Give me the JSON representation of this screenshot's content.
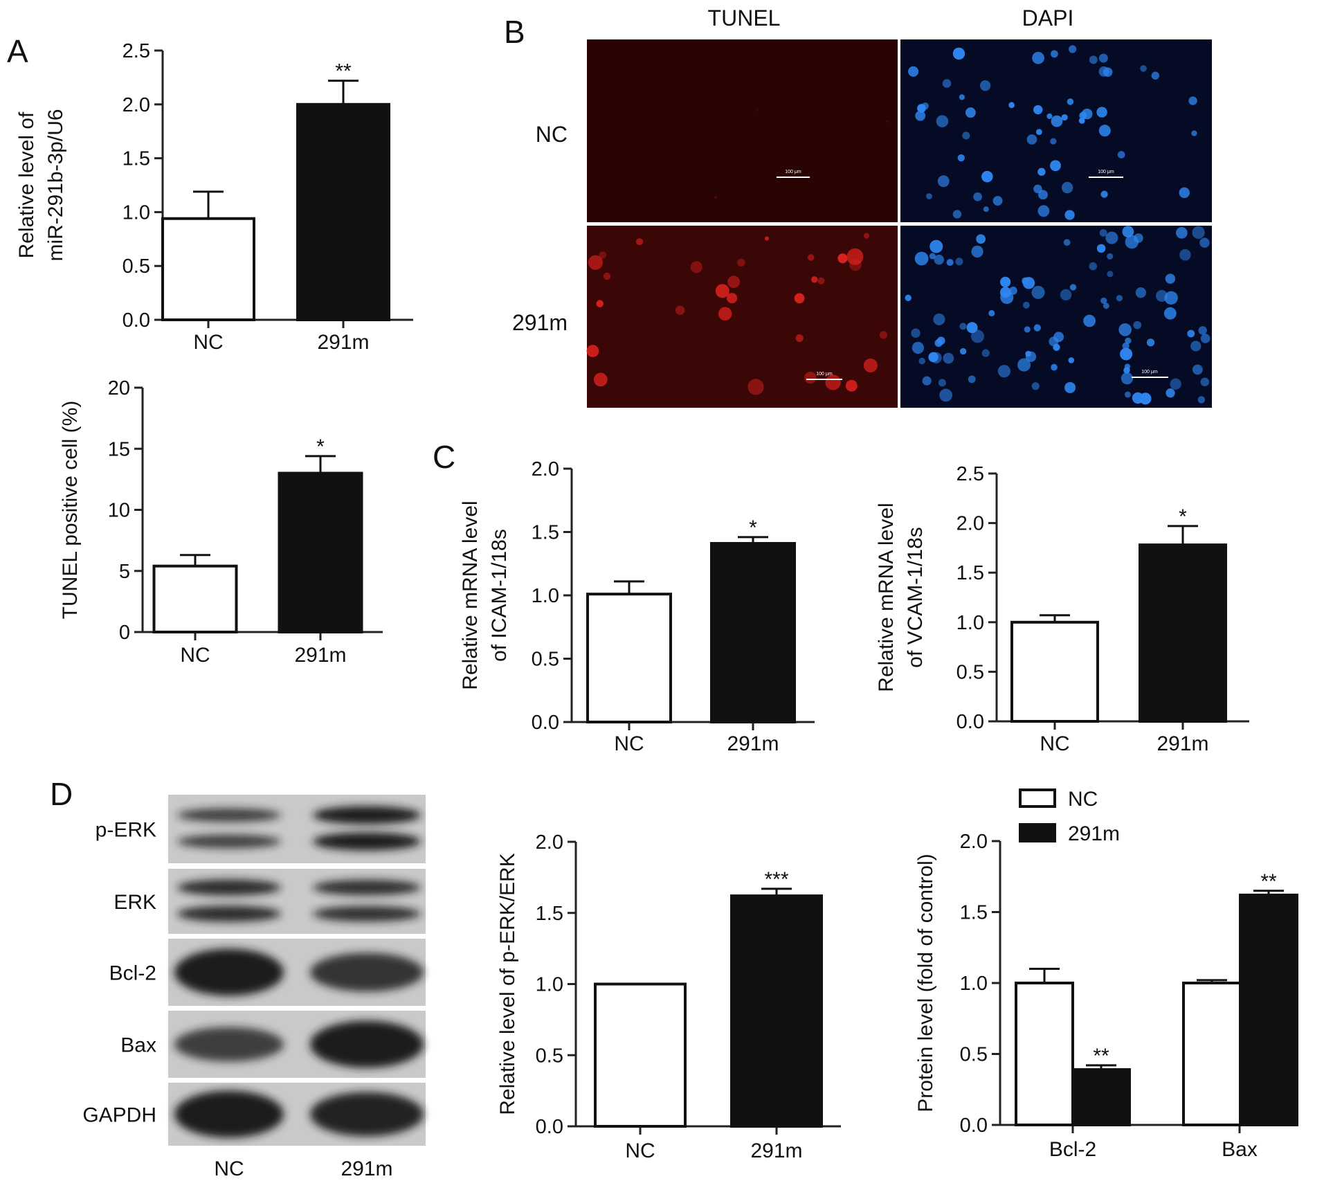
{
  "panels": {
    "A": "A",
    "B": "B",
    "C": "C",
    "D": "D"
  },
  "colors": {
    "bar_nc": "#ffffff",
    "bar_291m": "#111111",
    "tunel_bg": "#3a0606",
    "tunel_cell": "#d8211e",
    "dapi_bg": "#050b24",
    "dapi_cell": "#2f86f0",
    "blot_bg": "#c9c9c9",
    "blot_band": "#1a1a1a"
  },
  "micrographs": {
    "col_headers": [
      "TUNEL",
      "DAPI"
    ],
    "row_labels": [
      "NC",
      "291m"
    ],
    "scale_bar_label": "100 μm"
  },
  "western_blot": {
    "bands": [
      "p-ERK",
      "ERK",
      "Bcl-2",
      "Bax",
      "GAPDH"
    ],
    "lanes": [
      "NC",
      "291m"
    ]
  },
  "chart_data": [
    {
      "id": "mir",
      "type": "bar",
      "ylabel": [
        "Relative level of",
        "miR-291b-3p/U6"
      ],
      "categories": [
        "NC",
        "291m"
      ],
      "values": [
        0.94,
        2.0
      ],
      "errors": [
        0.25,
        0.22
      ],
      "significance": [
        "",
        "**"
      ],
      "ylim": [
        0,
        2.5
      ],
      "yticks": [
        "0.0",
        "0.5",
        "1.0",
        "1.5",
        "2.0",
        "2.5"
      ],
      "grid": false
    },
    {
      "id": "tunel",
      "type": "bar",
      "ylabel": [
        "TUNEL positive cell (%)"
      ],
      "categories": [
        "NC",
        "291m"
      ],
      "values": [
        5.4,
        13.0
      ],
      "errors": [
        0.9,
        1.4
      ],
      "significance": [
        "",
        "*"
      ],
      "ylim": [
        0,
        20
      ],
      "yticks": [
        "0",
        "5",
        "10",
        "15",
        "20"
      ],
      "grid": false
    },
    {
      "id": "icam",
      "type": "bar",
      "ylabel": [
        "Relative mRNA level",
        "of ICAM-1/18s"
      ],
      "categories": [
        "NC",
        "291m"
      ],
      "values": [
        1.01,
        1.41
      ],
      "errors": [
        0.1,
        0.05
      ],
      "significance": [
        "",
        "*"
      ],
      "ylim": [
        0,
        2.0
      ],
      "yticks": [
        "0.0",
        "0.5",
        "1.0",
        "1.5",
        "2.0"
      ],
      "grid": false
    },
    {
      "id": "vcam",
      "type": "bar",
      "ylabel": [
        "Relative mRNA level",
        "of VCAM-1/18s"
      ],
      "categories": [
        "NC",
        "291m"
      ],
      "values": [
        1.0,
        1.78
      ],
      "errors": [
        0.07,
        0.19
      ],
      "significance": [
        "",
        "*"
      ],
      "ylim": [
        0,
        2.5
      ],
      "yticks": [
        "0.0",
        "0.5",
        "1.0",
        "1.5",
        "2.0",
        "2.5"
      ],
      "grid": false
    },
    {
      "id": "perk",
      "type": "bar",
      "ylabel": [
        "Relative level of p-ERK/ERK"
      ],
      "categories": [
        "NC",
        "291m"
      ],
      "values": [
        1.0,
        1.62
      ],
      "errors": [
        0.0,
        0.05
      ],
      "significance": [
        "",
        "***"
      ],
      "ylim": [
        0,
        2.0
      ],
      "yticks": [
        "0.0",
        "0.5",
        "1.0",
        "1.5",
        "2.0"
      ],
      "grid": false
    },
    {
      "id": "protein",
      "type": "bar",
      "ylabel": [
        "Protein level (fold of control)"
      ],
      "categories": [
        "Bcl-2",
        "Bax"
      ],
      "series": [
        {
          "name": "NC",
          "values": [
            1.0,
            1.0
          ],
          "errors": [
            0.1,
            0.02
          ],
          "significance": [
            "",
            ""
          ]
        },
        {
          "name": "291m",
          "values": [
            0.39,
            1.62
          ],
          "errors": [
            0.03,
            0.03
          ],
          "significance": [
            "**",
            "**"
          ]
        }
      ],
      "ylim": [
        0,
        2.0
      ],
      "yticks": [
        "0.0",
        "0.5",
        "1.0",
        "1.5",
        "2.0"
      ],
      "legend_position": "top",
      "grid": false
    }
  ]
}
